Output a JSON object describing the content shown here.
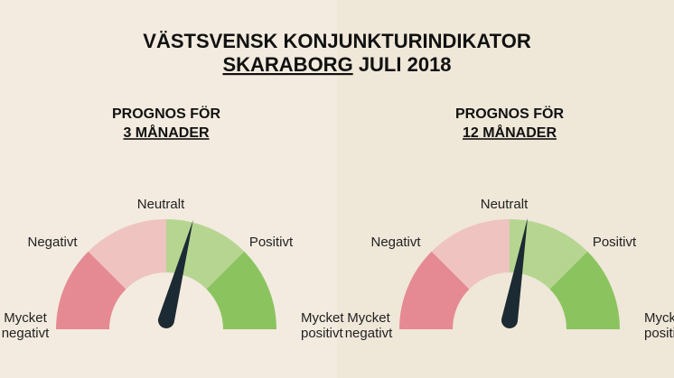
{
  "title": {
    "line1": "VÄSTSVENSK KONJUNKTURINDIKATOR",
    "place": "SKARABORG",
    "period": "JULI 2018"
  },
  "gauges": [
    {
      "heading": "PROGNOS FÖR",
      "horizon": "3 MÅNADER",
      "labels": {
        "neutral": "Neutralt",
        "negative": "Negativt",
        "positive": "Positivt",
        "very_negative": [
          "Mycket",
          "negativt"
        ],
        "very_positive": [
          "Mycket",
          "positivt"
        ]
      }
    },
    {
      "heading": "PROGNOS FÖR",
      "horizon": "12 MÅNADER",
      "labels": {
        "neutral": "Neutralt",
        "negative": "Negativt",
        "positive": "Positivt",
        "very_negative": [
          "Mycket",
          "negativt"
        ],
        "very_positive": [
          "Mycket",
          "positivt"
        ]
      }
    }
  ]
}
